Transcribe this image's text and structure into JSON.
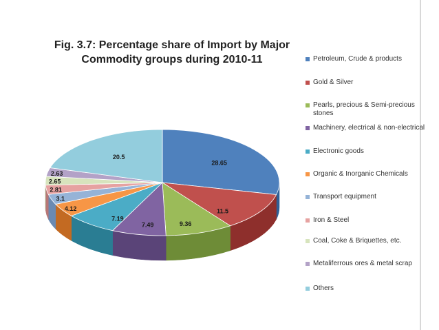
{
  "chart_data": {
    "type": "pie",
    "title_line1": "Fig. 3.7: Percentage share of Import by Major",
    "title_line2": "Commodity groups during 2010-11",
    "series": [
      {
        "name": "Petroleum, Crude & products",
        "value": 28.65,
        "label": "28.65",
        "color": "#4F81BD",
        "side": "#2F5F95"
      },
      {
        "name": "Gold & Silver",
        "value": 11.5,
        "label": "11.5",
        "color": "#C0504D",
        "side": "#8E2F2C"
      },
      {
        "name": "Pearls, precious & Semi-precious stones",
        "value": 9.36,
        "label": "9.36",
        "color": "#9BBB59",
        "side": "#6E8C37"
      },
      {
        "name": "Machinery, electrical & non-electrical",
        "value": 7.49,
        "label": "7.49",
        "color": "#8064A2",
        "side": "#5A4478"
      },
      {
        "name": "Electronic goods",
        "value": 7.19,
        "label": "7.19",
        "color": "#4BACC6",
        "side": "#2A7D93"
      },
      {
        "name": "Organic & Inorganic Chemicals",
        "value": 4.12,
        "label": "4.12",
        "color": "#F79646",
        "side": "#C36A22"
      },
      {
        "name": "Transport equipment",
        "value": 3.1,
        "label": "3.1",
        "color": "#95B3D7",
        "side": "#6A8AB2"
      },
      {
        "name": "Iron & Steel",
        "value": 2.81,
        "label": "2.81",
        "color": "#E6A2A1",
        "side": "#B87776"
      },
      {
        "name": "Coal, Coke & Briquettes, etc.",
        "value": 2.65,
        "label": "2.65",
        "color": "#D7E4BD",
        "side": "#A8B88C"
      },
      {
        "name": "Metaliferrous ores & metal scrap",
        "value": 2.63,
        "label": "2.63",
        "color": "#B3A2C7",
        "side": "#86769C"
      },
      {
        "name": "Others",
        "value": 20.5,
        "label": "20.5",
        "color": "#93CDDD",
        "side": "#62A0B2"
      }
    ],
    "legend_position": "right"
  }
}
